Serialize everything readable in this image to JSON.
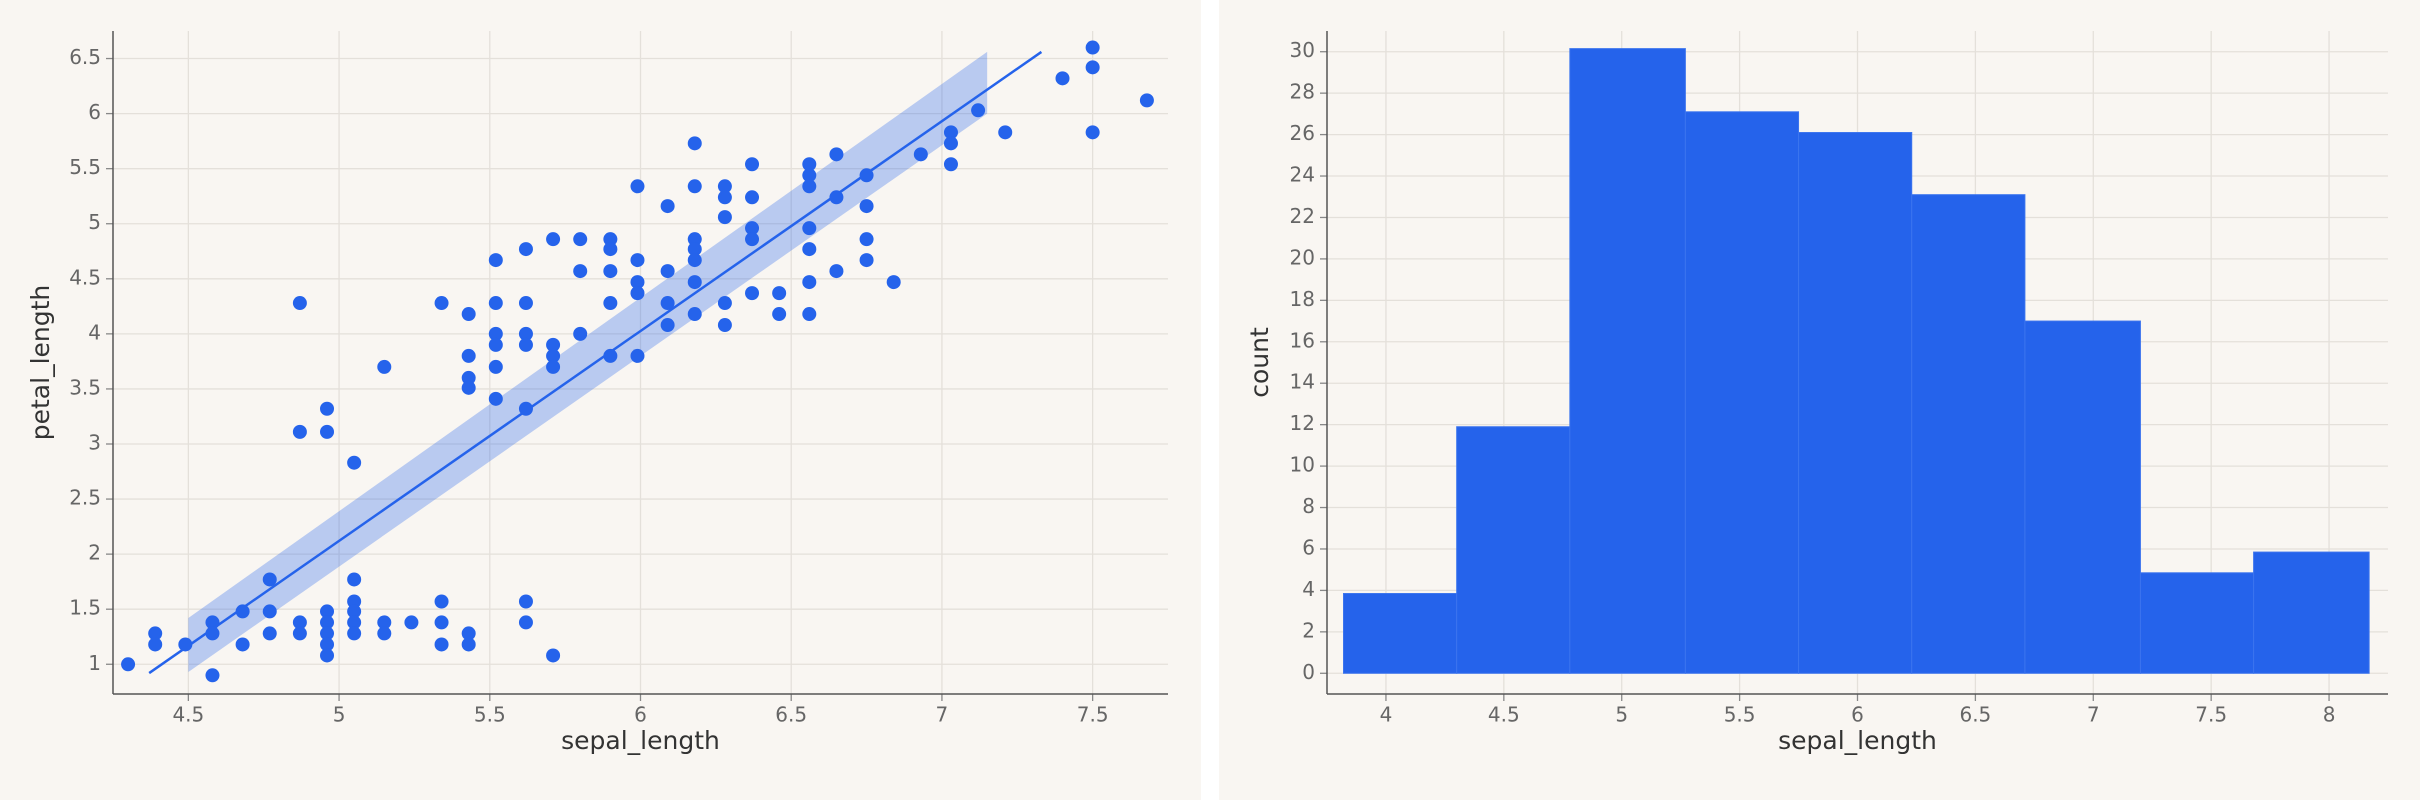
{
  "chart_data": [
    {
      "type": "scatter",
      "x": [
        4.3,
        4.39,
        4.39,
        4.49,
        4.58,
        4.58,
        4.58,
        4.68,
        4.68,
        4.77,
        4.77,
        4.77,
        4.87,
        4.87,
        4.96,
        4.96,
        4.96,
        4.96,
        4.96,
        5.05,
        5.05,
        5.05,
        5.05,
        5.05,
        5.15,
        5.15,
        5.24,
        5.34,
        5.34,
        5.34,
        5.43,
        5.43,
        5.62,
        5.62,
        5.71,
        4.87,
        4.87,
        4.96,
        4.96,
        5.05,
        5.15,
        5.34,
        5.43,
        5.43,
        5.43,
        5.43,
        5.52,
        5.52,
        5.52,
        5.52,
        5.52,
        5.52,
        5.62,
        5.62,
        5.62,
        5.62,
        5.62,
        5.71,
        5.71,
        5.71,
        5.71,
        5.8,
        5.8,
        5.8,
        5.9,
        5.9,
        5.9,
        5.9,
        5.9,
        5.99,
        5.99,
        5.99,
        5.99,
        5.99,
        6.09,
        6.09,
        6.09,
        6.09,
        6.18,
        6.18,
        6.18,
        6.18,
        6.18,
        6.18,
        6.18,
        6.28,
        6.28,
        6.28,
        6.28,
        6.28,
        6.37,
        6.37,
        6.37,
        6.37,
        6.37,
        6.46,
        6.46,
        6.56,
        6.56,
        6.56,
        6.56,
        6.56,
        6.56,
        6.56,
        6.65,
        6.65,
        6.65,
        6.75,
        6.75,
        6.75,
        6.75,
        6.84,
        6.93,
        7.03,
        7.03,
        7.03,
        7.12,
        7.21,
        7.4,
        7.5,
        7.5,
        7.5,
        7.68
      ],
      "values": [
        1.0,
        1.28,
        1.18,
        1.18,
        1.38,
        1.28,
        0.9,
        1.48,
        1.18,
        1.77,
        1.48,
        1.28,
        1.38,
        1.28,
        1.48,
        1.38,
        1.28,
        1.18,
        1.08,
        1.77,
        1.57,
        1.48,
        1.38,
        1.28,
        1.38,
        1.28,
        1.38,
        1.57,
        1.38,
        1.18,
        1.28,
        1.18,
        1.57,
        1.38,
        1.08,
        4.28,
        3.11,
        3.32,
        3.11,
        2.83,
        3.7,
        4.28,
        4.18,
        3.8,
        3.6,
        3.51,
        4.67,
        4.28,
        4.0,
        3.9,
        3.7,
        3.41,
        4.77,
        4.28,
        4.0,
        3.9,
        3.32,
        4.86,
        3.9,
        3.8,
        3.7,
        4.86,
        4.57,
        4.0,
        4.86,
        4.77,
        4.57,
        4.28,
        3.8,
        5.34,
        4.67,
        4.47,
        4.37,
        3.8,
        5.16,
        4.57,
        4.28,
        4.08,
        5.73,
        5.34,
        4.86,
        4.77,
        4.67,
        4.47,
        4.18,
        5.34,
        5.24,
        5.06,
        4.28,
        4.08,
        5.54,
        5.24,
        4.96,
        4.86,
        4.37,
        4.37,
        4.18,
        5.54,
        5.44,
        5.34,
        4.96,
        4.77,
        4.47,
        4.18,
        5.63,
        5.24,
        4.57,
        5.44,
        5.16,
        4.86,
        4.67,
        4.47,
        5.63,
        5.83,
        5.73,
        5.54,
        6.03,
        5.83,
        6.32,
        6.6,
        6.42,
        5.83,
        6.12
      ],
      "color": "#2563eb",
      "fit": {
        "x": [
          4.37,
          7.33
        ],
        "values": [
          0.92,
          6.56
        ]
      },
      "band": {
        "x": [
          4.5,
          7.15
        ],
        "upper": [
          1.42,
          6.56
        ],
        "lower": [
          0.93,
          6.0
        ]
      },
      "xlabel": "sepal_length",
      "ylabel": "petal_length",
      "xlim": [
        4.25,
        7.75
      ],
      "ylim": [
        0.73,
        6.75
      ],
      "xticks": [
        4.5,
        5,
        5.5,
        6,
        6.5,
        7,
        7.5
      ],
      "yticks": [
        1,
        1.5,
        2,
        2.5,
        3,
        3.5,
        4,
        4.5,
        5,
        5.5,
        6,
        6.5
      ],
      "grid": true
    },
    {
      "type": "histogram",
      "bins": [
        3.82,
        4.3,
        4.78,
        5.27,
        5.75,
        6.23,
        6.71,
        7.2,
        7.68,
        8.17
      ],
      "values": [
        3.85,
        11.9,
        30.15,
        27.1,
        26.1,
        23.1,
        17,
        4.85,
        5.85
      ],
      "color": "#2563eb",
      "xlabel": "sepal_length",
      "ylabel": "count",
      "xlim": [
        3.75,
        8.25
      ],
      "ylim": [
        -1,
        31
      ],
      "xticks": [
        4,
        4.5,
        5,
        5.5,
        6,
        6.5,
        7,
        7.5,
        8
      ],
      "yticks": [
        0,
        2,
        4,
        6,
        8,
        10,
        12,
        14,
        16,
        18,
        20,
        22,
        24,
        26,
        28,
        30
      ],
      "grid": true
    }
  ]
}
